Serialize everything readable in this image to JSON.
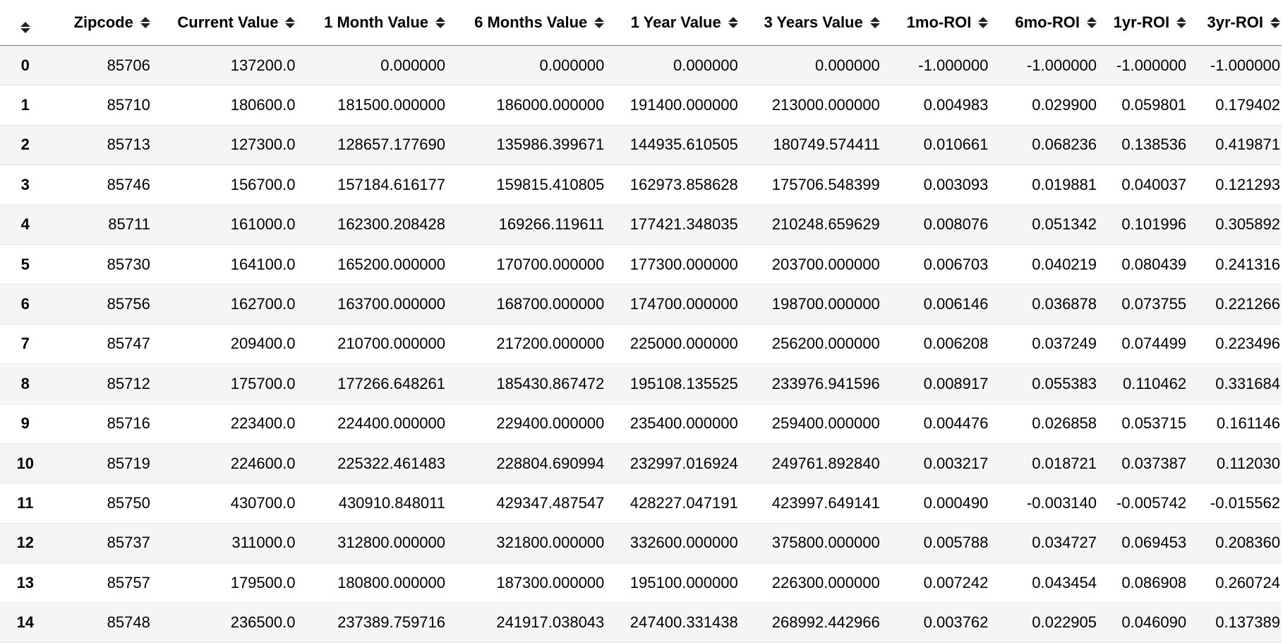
{
  "table": {
    "columns": [
      "Zipcode",
      "Current Value",
      "1 Month Value",
      "6 Months Value",
      "1 Year Value",
      "3 Years Value",
      "1mo-ROI",
      "6mo-ROI",
      "1yr-ROI",
      "3yr-ROI"
    ],
    "sort_icon": "sort-updown-icon",
    "rows": [
      [
        "0",
        "85706",
        "137200.0",
        "0.000000",
        "0.000000",
        "0.000000",
        "0.000000",
        "-1.000000",
        "-1.000000",
        "-1.000000",
        "-1.000000"
      ],
      [
        "1",
        "85710",
        "180600.0",
        "181500.000000",
        "186000.000000",
        "191400.000000",
        "213000.000000",
        "0.004983",
        "0.029900",
        "0.059801",
        "0.179402"
      ],
      [
        "2",
        "85713",
        "127300.0",
        "128657.177690",
        "135986.399671",
        "144935.610505",
        "180749.574411",
        "0.010661",
        "0.068236",
        "0.138536",
        "0.419871"
      ],
      [
        "3",
        "85746",
        "156700.0",
        "157184.616177",
        "159815.410805",
        "162973.858628",
        "175706.548399",
        "0.003093",
        "0.019881",
        "0.040037",
        "0.121293"
      ],
      [
        "4",
        "85711",
        "161000.0",
        "162300.208428",
        "169266.119611",
        "177421.348035",
        "210248.659629",
        "0.008076",
        "0.051342",
        "0.101996",
        "0.305892"
      ],
      [
        "5",
        "85730",
        "164100.0",
        "165200.000000",
        "170700.000000",
        "177300.000000",
        "203700.000000",
        "0.006703",
        "0.040219",
        "0.080439",
        "0.241316"
      ],
      [
        "6",
        "85756",
        "162700.0",
        "163700.000000",
        "168700.000000",
        "174700.000000",
        "198700.000000",
        "0.006146",
        "0.036878",
        "0.073755",
        "0.221266"
      ],
      [
        "7",
        "85747",
        "209400.0",
        "210700.000000",
        "217200.000000",
        "225000.000000",
        "256200.000000",
        "0.006208",
        "0.037249",
        "0.074499",
        "0.223496"
      ],
      [
        "8",
        "85712",
        "175700.0",
        "177266.648261",
        "185430.867472",
        "195108.135525",
        "233976.941596",
        "0.008917",
        "0.055383",
        "0.110462",
        "0.331684"
      ],
      [
        "9",
        "85716",
        "223400.0",
        "224400.000000",
        "229400.000000",
        "235400.000000",
        "259400.000000",
        "0.004476",
        "0.026858",
        "0.053715",
        "0.161146"
      ],
      [
        "10",
        "85719",
        "224600.0",
        "225322.461483",
        "228804.690994",
        "232997.016924",
        "249761.892840",
        "0.003217",
        "0.018721",
        "0.037387",
        "0.112030"
      ],
      [
        "11",
        "85750",
        "430700.0",
        "430910.848011",
        "429347.487547",
        "428227.047191",
        "423997.649141",
        "0.000490",
        "-0.003140",
        "-0.005742",
        "-0.015562"
      ],
      [
        "12",
        "85737",
        "311000.0",
        "312800.000000",
        "321800.000000",
        "332600.000000",
        "375800.000000",
        "0.005788",
        "0.034727",
        "0.069453",
        "0.208360"
      ],
      [
        "13",
        "85757",
        "179500.0",
        "180800.000000",
        "187300.000000",
        "195100.000000",
        "226300.000000",
        "0.007242",
        "0.043454",
        "0.086908",
        "0.260724"
      ],
      [
        "14",
        "85748",
        "236500.0",
        "237389.759716",
        "241917.038043",
        "247400.331438",
        "268992.442966",
        "0.003762",
        "0.022905",
        "0.046090",
        "0.137389"
      ]
    ]
  },
  "colors": {
    "stripe": "#f5f5f5",
    "background": "#ffffff",
    "header_border": "#777777",
    "row_border": "#e6e6e6"
  }
}
